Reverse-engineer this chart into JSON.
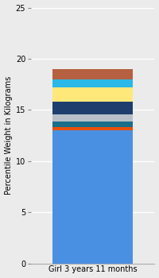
{
  "category": "Girl 3 years 11 months",
  "segments": [
    {
      "value": 13.0,
      "color": "#4a90e2"
    },
    {
      "value": 0.35,
      "color": "#e8500a"
    },
    {
      "value": 0.55,
      "color": "#1a6e8a"
    },
    {
      "value": 0.7,
      "color": "#b8bfc8"
    },
    {
      "value": 1.2,
      "color": "#1e3f6e"
    },
    {
      "value": 1.4,
      "color": "#ffe87a"
    },
    {
      "value": 0.8,
      "color": "#29b8e8"
    },
    {
      "value": 1.0,
      "color": "#b56040"
    }
  ],
  "ylabel": "Percentile Weight in Kilograms",
  "ylim": [
    0,
    25
  ],
  "yticks": [
    0,
    5,
    10,
    15,
    20,
    25
  ],
  "bg_color_top": "#e8e8e8",
  "bg_color_bottom": "#f5f5f5",
  "bar_width": 0.65,
  "xlabel": "Girl 3 years 11 months",
  "figsize": [
    2.0,
    3.5
  ],
  "dpi": 100
}
